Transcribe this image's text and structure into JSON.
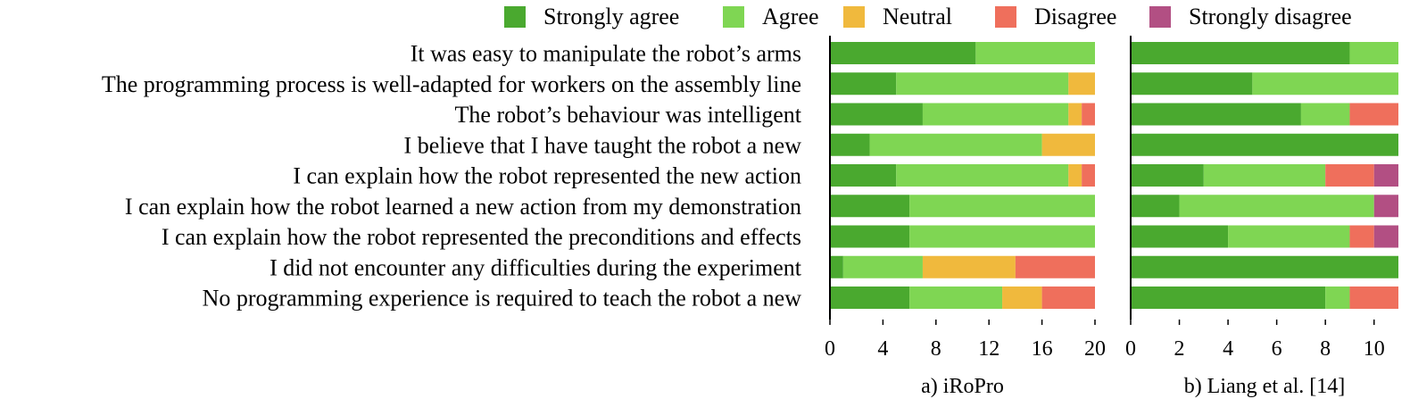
{
  "chart_data": {
    "type": "bar",
    "stacked": true,
    "orientation": "horizontal",
    "legend": {
      "placement": "top-right",
      "entries": [
        {
          "key": "strongly_agree",
          "label": "Strongly agree",
          "color": "#4aa92f"
        },
        {
          "key": "agree",
          "label": "Agree",
          "color": "#7fd653"
        },
        {
          "key": "neutral",
          "label": "Neutral",
          "color": "#f0b93d"
        },
        {
          "key": "disagree",
          "label": "Disagree",
          "color": "#ef6f5c"
        },
        {
          "key": "strongly_disagree",
          "label": "Strongly disagree",
          "color": "#b24f83"
        }
      ]
    },
    "categories": [
      "It was easy to manipulate the robot’s arms",
      "The programming process is well-adapted for workers on the assembly line",
      "The robot’s behaviour was intelligent",
      "I believe that I have taught the robot a new",
      "I can explain how the robot represented the new action",
      "I can explain how the robot learned a new action from my demonstration",
      "I can explain how the robot represented the preconditions and effects",
      "I did not encounter any difficulties during the experiment",
      "No programming experience is required to teach the robot a new"
    ],
    "panels": [
      {
        "caption": "a) iRoPro",
        "xlim": [
          0,
          20
        ],
        "xticks": [
          "0",
          "4",
          "8",
          "12",
          "16",
          "20"
        ],
        "tick_values": [
          0,
          4,
          8,
          12,
          16,
          20
        ],
        "series": [
          {
            "name": "Strongly agree",
            "values": [
              11,
              5,
              7,
              3,
              5,
              6,
              6,
              1,
              6
            ]
          },
          {
            "name": "Agree",
            "values": [
              9,
              13,
              11,
              13,
              13,
              14,
              14,
              6,
              7
            ]
          },
          {
            "name": "Neutral",
            "values": [
              0,
              2,
              1,
              4,
              1,
              0,
              0,
              7,
              3
            ]
          },
          {
            "name": "Disagree",
            "values": [
              0,
              0,
              1,
              0,
              1,
              0,
              0,
              6,
              4
            ]
          },
          {
            "name": "Strongly disagree",
            "values": [
              0,
              0,
              0,
              0,
              0,
              0,
              0,
              0,
              0
            ]
          }
        ]
      },
      {
        "caption": "b) Liang et al. [14]",
        "xlim": [
          0,
          11
        ],
        "xticks": [
          "0",
          "2",
          "4",
          "6",
          "8",
          "10"
        ],
        "tick_values": [
          0,
          2,
          4,
          6,
          8,
          10
        ],
        "series": [
          {
            "name": "Strongly agree",
            "values": [
              9,
              5,
              7,
              11,
              3,
              2,
              4,
              11,
              8
            ]
          },
          {
            "name": "Agree",
            "values": [
              2,
              6,
              2,
              0,
              5,
              8,
              5,
              0,
              1
            ]
          },
          {
            "name": "Neutral",
            "values": [
              0,
              0,
              0,
              0,
              0,
              0,
              0,
              0,
              0
            ]
          },
          {
            "name": "Disagree",
            "values": [
              0,
              0,
              2,
              0,
              2,
              0,
              1,
              0,
              2
            ]
          },
          {
            "name": "Strongly disagree",
            "values": [
              0,
              0,
              0,
              0,
              1,
              1,
              1,
              0,
              0
            ]
          }
        ]
      }
    ]
  }
}
